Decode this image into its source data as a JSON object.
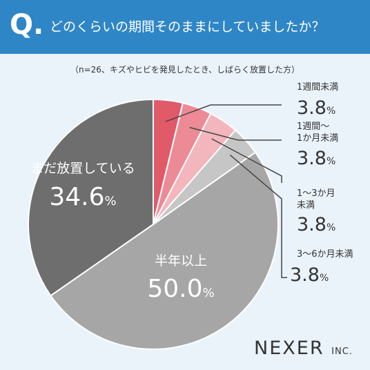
{
  "header": {
    "q_letter": "Q.",
    "question": "どのくらいの期間そのままにしていましたか？",
    "subtitle": "（n=26、キズやヒビを発見したとき、しばらく放置した方）"
  },
  "chart_data": {
    "type": "pie",
    "unit": "%",
    "slices": [
      {
        "label_lines": [
          "1週間未満"
        ],
        "value": 3.8,
        "color": "#e05a6a"
      },
      {
        "label_lines": [
          "1週間〜",
          "1か月未満"
        ],
        "value": 3.8,
        "color": "#ec8a95"
      },
      {
        "label_lines": [
          "1〜3か月",
          "未満"
        ],
        "value": 3.8,
        "color": "#f3b6bd"
      },
      {
        "label_lines": [
          "3〜6か月未満"
        ],
        "value": 3.8,
        "color": "#c6c6c6"
      },
      {
        "label_lines": [
          "半年以上"
        ],
        "value": 50.0,
        "color": "#a6a6a6"
      },
      {
        "label_lines": [
          "まだ放置している"
        ],
        "value": 34.6,
        "color": "#6e6e6e"
      }
    ],
    "value_labels": [
      "3.8",
      "3.8",
      "3.8",
      "3.8",
      "50.0",
      "34.6"
    ],
    "legend": "callouts-right"
  },
  "logo": {
    "name": "NEXER",
    "suffix": "INC."
  },
  "colors": {
    "header_bg": "#2f86c6",
    "page_bg": "#eaf3fa",
    "text": "#333333",
    "line": "#444444"
  }
}
